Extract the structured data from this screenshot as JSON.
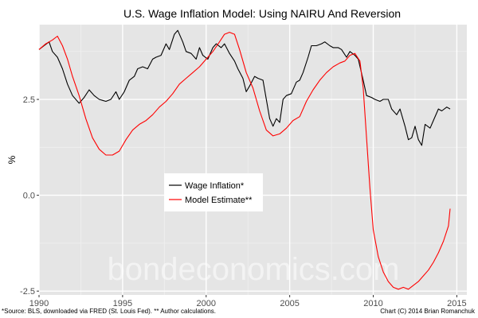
{
  "chart_data": {
    "type": "line",
    "title": "U.S. Wage Inflation Model: Using NAIRU And Reversion",
    "xlabel": "",
    "ylabel": "%",
    "xlim": [
      1990,
      2015.6
    ],
    "ylim": [
      -2.6,
      4.45
    ],
    "x_ticks": [
      1990,
      1995,
      2000,
      2005,
      2010,
      2015
    ],
    "x_tick_labels": [
      "1990",
      "1995",
      "2000",
      "2005",
      "2010",
      "2015"
    ],
    "y_ticks": [
      2.5,
      0.0,
      -2.5
    ],
    "y_tick_labels": [
      "2.5",
      "0.0",
      "-2.5"
    ],
    "grid": true,
    "legend_position": "center-left",
    "series": [
      {
        "name": "Wage Inflation*",
        "color": "#000000",
        "points": [
          [
            1990.0,
            3.8
          ],
          [
            1990.3,
            3.9
          ],
          [
            1990.6,
            4.0
          ],
          [
            1990.8,
            3.75
          ],
          [
            1991.1,
            3.6
          ],
          [
            1991.4,
            3.3
          ],
          [
            1991.7,
            2.9
          ],
          [
            1992.0,
            2.6
          ],
          [
            1992.4,
            2.4
          ],
          [
            1992.7,
            2.55
          ],
          [
            1993.0,
            2.75
          ],
          [
            1993.3,
            2.6
          ],
          [
            1993.6,
            2.5
          ],
          [
            1994.0,
            2.45
          ],
          [
            1994.3,
            2.5
          ],
          [
            1994.6,
            2.7
          ],
          [
            1994.8,
            2.5
          ],
          [
            1995.1,
            2.7
          ],
          [
            1995.4,
            3.0
          ],
          [
            1995.7,
            3.1
          ],
          [
            1995.9,
            3.3
          ],
          [
            1996.2,
            3.35
          ],
          [
            1996.5,
            3.3
          ],
          [
            1996.8,
            3.55
          ],
          [
            1997.0,
            3.6
          ],
          [
            1997.3,
            3.65
          ],
          [
            1997.6,
            3.95
          ],
          [
            1997.8,
            3.8
          ],
          [
            1998.1,
            4.2
          ],
          [
            1998.3,
            4.3
          ],
          [
            1998.6,
            4.0
          ],
          [
            1998.8,
            3.75
          ],
          [
            1999.1,
            3.7
          ],
          [
            1999.4,
            3.55
          ],
          [
            1999.6,
            3.85
          ],
          [
            1999.8,
            3.65
          ],
          [
            2000.1,
            3.55
          ],
          [
            2000.4,
            3.85
          ],
          [
            2000.6,
            3.95
          ],
          [
            2000.9,
            3.85
          ],
          [
            2001.1,
            3.95
          ],
          [
            2001.4,
            3.7
          ],
          [
            2001.7,
            3.5
          ],
          [
            2001.9,
            3.3
          ],
          [
            2002.2,
            3.05
          ],
          [
            2002.4,
            2.7
          ],
          [
            2002.6,
            2.85
          ],
          [
            2002.9,
            3.1
          ],
          [
            2003.1,
            3.05
          ],
          [
            2003.4,
            3.0
          ],
          [
            2003.6,
            2.5
          ],
          [
            2003.8,
            2.0
          ],
          [
            2004.0,
            1.8
          ],
          [
            2004.2,
            2.0
          ],
          [
            2004.4,
            1.9
          ],
          [
            2004.6,
            2.5
          ],
          [
            2004.8,
            2.6
          ],
          [
            2005.1,
            2.65
          ],
          [
            2005.4,
            2.95
          ],
          [
            2005.6,
            3.0
          ],
          [
            2005.8,
            3.2
          ],
          [
            2006.1,
            3.6
          ],
          [
            2006.3,
            3.9
          ],
          [
            2006.6,
            3.9
          ],
          [
            2006.9,
            3.95
          ],
          [
            2007.1,
            4.0
          ],
          [
            2007.4,
            3.9
          ],
          [
            2007.6,
            3.85
          ],
          [
            2007.9,
            3.85
          ],
          [
            2008.1,
            3.8
          ],
          [
            2008.4,
            3.6
          ],
          [
            2008.6,
            3.75
          ],
          [
            2008.9,
            3.65
          ],
          [
            2009.1,
            3.55
          ],
          [
            2009.4,
            3.0
          ],
          [
            2009.6,
            2.6
          ],
          [
            2009.9,
            2.55
          ],
          [
            2010.1,
            2.5
          ],
          [
            2010.4,
            2.45
          ],
          [
            2010.6,
            2.5
          ],
          [
            2010.9,
            2.5
          ],
          [
            2011.1,
            2.25
          ],
          [
            2011.4,
            2.1
          ],
          [
            2011.6,
            2.25
          ],
          [
            2011.9,
            1.8
          ],
          [
            2012.1,
            1.45
          ],
          [
            2012.3,
            1.5
          ],
          [
            2012.5,
            1.8
          ],
          [
            2012.7,
            1.45
          ],
          [
            2012.9,
            1.3
          ],
          [
            2013.1,
            1.85
          ],
          [
            2013.4,
            1.75
          ],
          [
            2013.6,
            1.95
          ],
          [
            2013.9,
            2.25
          ],
          [
            2014.1,
            2.2
          ],
          [
            2014.4,
            2.3
          ],
          [
            2014.6,
            2.25
          ]
        ]
      },
      {
        "name": "Model Estimate**",
        "color": "#ff0000",
        "points": [
          [
            1990.0,
            3.8
          ],
          [
            1990.4,
            3.95
          ],
          [
            1990.8,
            4.05
          ],
          [
            1991.1,
            4.15
          ],
          [
            1991.4,
            3.9
          ],
          [
            1991.7,
            3.55
          ],
          [
            1992.0,
            3.1
          ],
          [
            1992.4,
            2.6
          ],
          [
            1992.8,
            2.0
          ],
          [
            1993.2,
            1.5
          ],
          [
            1993.6,
            1.2
          ],
          [
            1994.0,
            1.05
          ],
          [
            1994.4,
            1.05
          ],
          [
            1994.8,
            1.15
          ],
          [
            1995.2,
            1.45
          ],
          [
            1995.6,
            1.7
          ],
          [
            1996.0,
            1.85
          ],
          [
            1996.4,
            1.95
          ],
          [
            1996.8,
            2.1
          ],
          [
            1997.2,
            2.3
          ],
          [
            1997.6,
            2.45
          ],
          [
            1998.0,
            2.65
          ],
          [
            1998.4,
            2.9
          ],
          [
            1998.8,
            3.05
          ],
          [
            1999.2,
            3.2
          ],
          [
            1999.6,
            3.35
          ],
          [
            2000.0,
            3.55
          ],
          [
            2000.4,
            3.75
          ],
          [
            2000.8,
            4.0
          ],
          [
            2001.1,
            4.2
          ],
          [
            2001.4,
            4.25
          ],
          [
            2001.7,
            4.2
          ],
          [
            2002.0,
            3.8
          ],
          [
            2002.4,
            3.2
          ],
          [
            2002.8,
            2.8
          ],
          [
            2003.2,
            2.2
          ],
          [
            2003.6,
            1.7
          ],
          [
            2004.0,
            1.55
          ],
          [
            2004.4,
            1.6
          ],
          [
            2004.8,
            1.75
          ],
          [
            2005.2,
            1.95
          ],
          [
            2005.6,
            2.05
          ],
          [
            2006.0,
            2.45
          ],
          [
            2006.4,
            2.75
          ],
          [
            2006.8,
            3.0
          ],
          [
            2007.2,
            3.2
          ],
          [
            2007.6,
            3.35
          ],
          [
            2008.0,
            3.45
          ],
          [
            2008.3,
            3.5
          ],
          [
            2008.6,
            3.65
          ],
          [
            2008.9,
            3.7
          ],
          [
            2009.2,
            3.5
          ],
          [
            2009.4,
            2.8
          ],
          [
            2009.6,
            1.5
          ],
          [
            2009.8,
            0.2
          ],
          [
            2010.0,
            -0.9
          ],
          [
            2010.3,
            -1.6
          ],
          [
            2010.6,
            -2.0
          ],
          [
            2010.9,
            -2.25
          ],
          [
            2011.2,
            -2.4
          ],
          [
            2011.5,
            -2.45
          ],
          [
            2011.8,
            -2.4
          ],
          [
            2012.1,
            -2.45
          ],
          [
            2012.4,
            -2.35
          ],
          [
            2012.7,
            -2.25
          ],
          [
            2013.0,
            -2.1
          ],
          [
            2013.3,
            -1.95
          ],
          [
            2013.6,
            -1.75
          ],
          [
            2013.9,
            -1.5
          ],
          [
            2014.2,
            -1.2
          ],
          [
            2014.5,
            -0.8
          ],
          [
            2014.6,
            -0.35
          ]
        ]
      }
    ],
    "footnote_left": "*Source: BLS, downloaded via FRED (St. Louis Fed). ** Author calculations.",
    "footnote_right": "Chart (C) 2014 Brian Romanchuk"
  },
  "watermark": "bondeconomics.com",
  "colors": {
    "panel_background": "#e5e5e5",
    "grid_major": "#ffffff",
    "grid_minor": "#f0f0f0"
  }
}
